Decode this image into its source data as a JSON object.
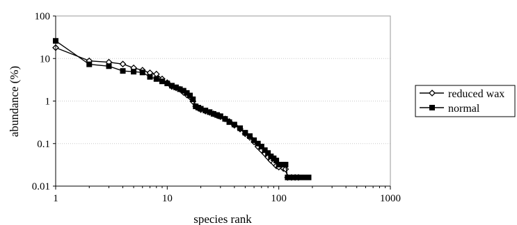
{
  "chart_data": {
    "type": "line",
    "xlabel": "species rank",
    "ylabel": "abundance (%)",
    "xscale": "log",
    "yscale": "log",
    "xlim": [
      1,
      1000
    ],
    "ylim": [
      0.01,
      100
    ],
    "x_ticks": [
      "1",
      "10",
      "100",
      "1000"
    ],
    "y_ticks": [
      "0.01",
      "0.1",
      "1",
      "10",
      "100"
    ],
    "grid": "horizontal",
    "legend_position": "right",
    "series": [
      {
        "name": "reduced wax",
        "marker": "open-diamond",
        "color": "#000000",
        "x": [
          1,
          2,
          3,
          4,
          5,
          6,
          7,
          8,
          9,
          10,
          11,
          12,
          13,
          14,
          15,
          16,
          17,
          18,
          19,
          20,
          22,
          24,
          26,
          28,
          30,
          33,
          36,
          40,
          45,
          50,
          55,
          60,
          65,
          70,
          75,
          80,
          85,
          90,
          95,
          100,
          110,
          115,
          120,
          130,
          140,
          150
        ],
        "y": [
          18,
          8.8,
          8.2,
          7.4,
          6.0,
          5.3,
          4.6,
          4.3,
          3.3,
          2.7,
          2.2,
          2.05,
          1.9,
          1.6,
          1.4,
          1.25,
          0.98,
          0.75,
          0.68,
          0.63,
          0.58,
          0.54,
          0.5,
          0.46,
          0.43,
          0.38,
          0.33,
          0.27,
          0.22,
          0.17,
          0.14,
          0.11,
          0.085,
          0.07,
          0.058,
          0.048,
          0.04,
          0.035,
          0.03,
          0.028,
          0.026,
          0.025,
          0.016,
          0.016,
          0.016,
          0.016
        ]
      },
      {
        "name": "normal",
        "marker": "filled-square",
        "color": "#000000",
        "x": [
          1,
          2,
          3,
          4,
          5,
          6,
          7,
          8,
          9,
          10,
          11,
          12,
          13,
          14,
          15,
          16,
          17,
          18,
          19,
          20,
          22,
          24,
          26,
          28,
          30,
          33,
          36,
          40,
          45,
          50,
          55,
          60,
          65,
          70,
          75,
          80,
          85,
          90,
          95,
          100,
          110,
          115,
          120,
          130,
          140,
          150,
          160,
          170,
          185
        ],
        "y": [
          26,
          7.3,
          6.6,
          5.1,
          4.9,
          4.7,
          3.7,
          3.3,
          2.9,
          2.6,
          2.3,
          2.1,
          1.9,
          1.75,
          1.55,
          1.35,
          1.1,
          0.75,
          0.7,
          0.66,
          0.6,
          0.55,
          0.5,
          0.47,
          0.44,
          0.38,
          0.32,
          0.28,
          0.23,
          0.18,
          0.15,
          0.12,
          0.1,
          0.085,
          0.07,
          0.06,
          0.05,
          0.045,
          0.04,
          0.032,
          0.032,
          0.032,
          0.016,
          0.016,
          0.016,
          0.016,
          0.016,
          0.016,
          0.016
        ]
      }
    ]
  }
}
